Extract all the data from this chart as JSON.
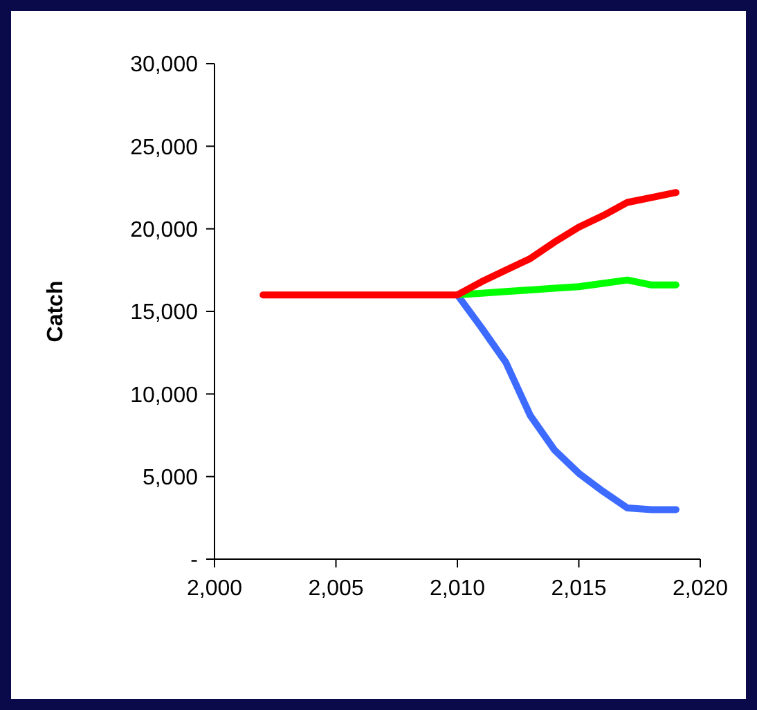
{
  "chart_data": {
    "type": "line",
    "ylabel": "Catch",
    "xlim": [
      2000,
      2020
    ],
    "xticks": [
      {
        "value": 2000,
        "label": "2,000"
      },
      {
        "value": 2005,
        "label": "2,005"
      },
      {
        "value": 2010,
        "label": "2,010"
      },
      {
        "value": 2015,
        "label": "2,015"
      },
      {
        "value": 2020,
        "label": "2,020"
      }
    ],
    "ylim": [
      0,
      30000
    ],
    "yticks": [
      {
        "value": 0,
        "label": "-"
      },
      {
        "value": 5000,
        "label": "5,000"
      },
      {
        "value": 10000,
        "label": "10,000"
      },
      {
        "value": 15000,
        "label": "15,000"
      },
      {
        "value": 20000,
        "label": "20,000"
      },
      {
        "value": 25000,
        "label": "25,000"
      },
      {
        "value": 30000,
        "label": "30,000"
      }
    ],
    "marker": "none",
    "line_style": "solid",
    "series": [
      {
        "color": "#3d6bff",
        "x": [
          2010,
          2011,
          2012,
          2013,
          2014,
          2015,
          2016,
          2017,
          2018,
          2019
        ],
        "values": [
          16000,
          14000,
          11900,
          8700,
          6600,
          5200,
          4100,
          3100,
          3000,
          3000
        ]
      },
      {
        "color": "#00ff00",
        "x": [
          2010,
          2011,
          2012,
          2013,
          2014,
          2015,
          2016,
          2017,
          2018,
          2019
        ],
        "values": [
          16000,
          16100,
          16200,
          16300,
          16400,
          16500,
          16700,
          16900,
          16600,
          16600
        ]
      },
      {
        "color": "#ff0000",
        "x": [
          2002,
          2003,
          2004,
          2005,
          2006,
          2007,
          2008,
          2009,
          2010,
          2011,
          2012,
          2013,
          2014,
          2015,
          2016,
          2017,
          2018,
          2019
        ],
        "values": [
          16000,
          16000,
          16000,
          16000,
          16000,
          16000,
          16000,
          16000,
          16000,
          16800,
          17500,
          18200,
          19200,
          20100,
          20800,
          21600,
          21900,
          22200
        ]
      }
    ]
  }
}
